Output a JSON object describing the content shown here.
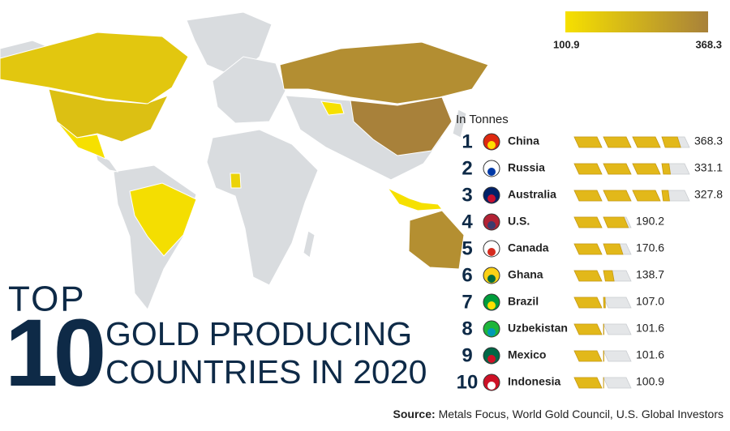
{
  "title": {
    "top": "TOP",
    "number": "10",
    "line1": "GOLD PRODUCING",
    "line2": "COUNTRIES IN 2020"
  },
  "legend": {
    "min": 100.9,
    "max": 368.3,
    "min_color": "#f6e000",
    "max_color": "#a8813a"
  },
  "unit": "In Tonnes",
  "rows": [
    {
      "rank": 1,
      "country": "China",
      "value": 368.3
    },
    {
      "rank": 2,
      "country": "Russia",
      "value": 331.1
    },
    {
      "rank": 3,
      "country": "Australia",
      "value": 327.8
    },
    {
      "rank": 4,
      "country": "U.S.",
      "value": 190.2
    },
    {
      "rank": 5,
      "country": "Canada",
      "value": 170.6
    },
    {
      "rank": 6,
      "country": "Ghana",
      "value": 138.7
    },
    {
      "rank": 7,
      "country": "Brazil",
      "value": 107,
      "value_label": "107.0"
    },
    {
      "rank": 8,
      "country": "Uzbekistan",
      "value": 101.6
    },
    {
      "rank": 9,
      "country": "Mexico",
      "value": 101.6
    },
    {
      "rank": 10,
      "country": "Indonesia",
      "value": 100.9
    }
  ],
  "source": {
    "label": "Source:",
    "text": "Metals Focus, World Gold Council, U.S. Global Investors"
  }
}
